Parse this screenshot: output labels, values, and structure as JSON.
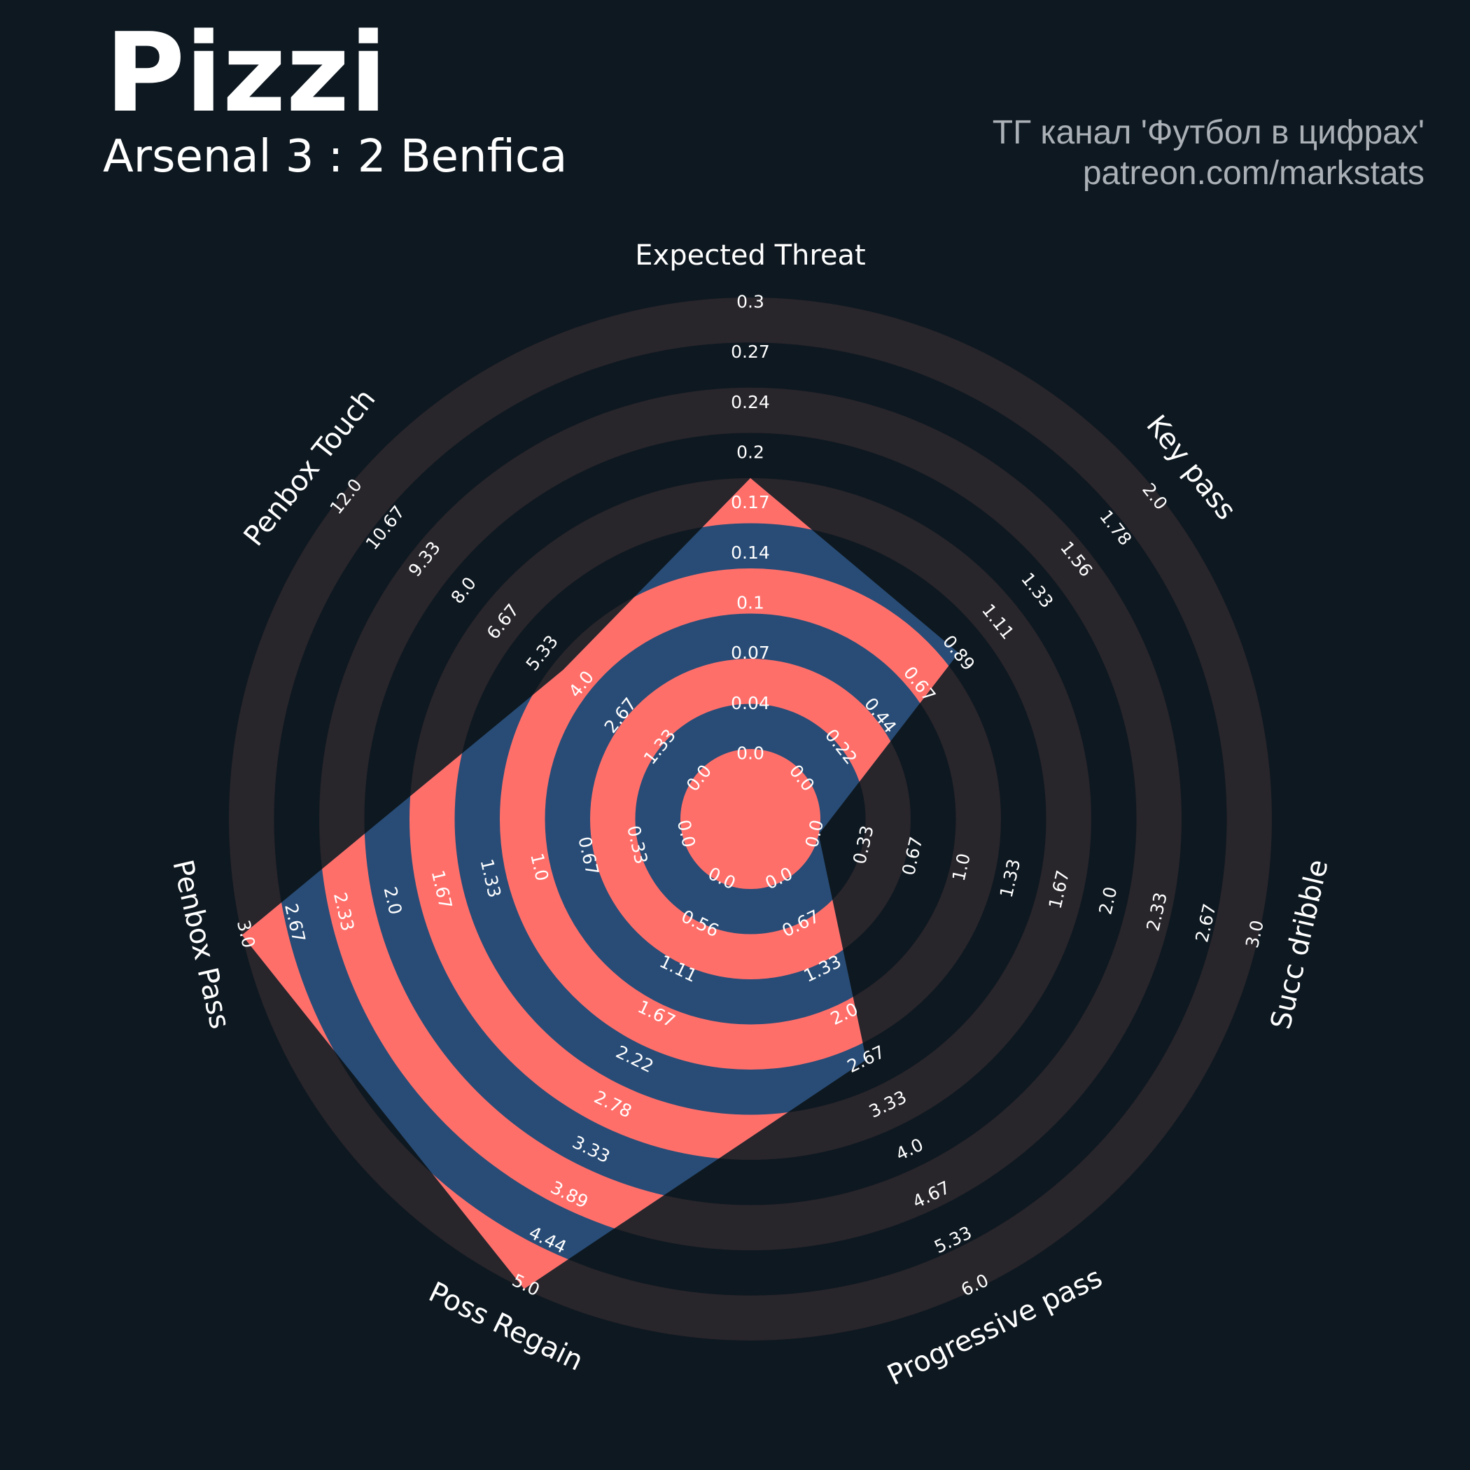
{
  "header": {
    "title": "Pizzi",
    "subtitle": "Arsenal 3 : 2 Benfica",
    "credit_line1": "ТГ канал 'Футбол в цифрах'",
    "credit_line2": "patreon.com/markstats"
  },
  "colors": {
    "background": "#0e1820",
    "ring_dark": "#28252b",
    "polygon_fill": "#284c76",
    "ring_highlight": "#ff6f6a",
    "text": "#ffffff",
    "credit_text": "#aab0b6"
  },
  "chart_data": {
    "type": "radar",
    "parameters": [
      "Expected Threat",
      "Key pass",
      "Succ dribble",
      "Progressive pass",
      "Poss Regain",
      "Penbox Pass",
      "Penbox Touch"
    ],
    "values": [
      0.18,
      0.87,
      0.0,
      2.62,
      5.0,
      3.0,
      4.5
    ],
    "ranges": [
      [
        0.0,
        0.3
      ],
      [
        0.0,
        2.0
      ],
      [
        0.0,
        3.0
      ],
      [
        0.0,
        6.0
      ],
      [
        0.0,
        5.0
      ],
      [
        0.0,
        3.0
      ],
      [
        0.0,
        12.0
      ]
    ],
    "tick_labels": [
      [
        "0.0",
        "0.04",
        "0.07",
        "0.1",
        "0.14",
        "0.17",
        "0.2",
        "0.24",
        "0.27",
        "0.3"
      ],
      [
        "0.0",
        "0.22",
        "0.44",
        "0.67",
        "0.89",
        "1.11",
        "1.33",
        "1.56",
        "1.78",
        "2.0"
      ],
      [
        "0.0",
        "0.33",
        "0.67",
        "1.0",
        "1.33",
        "1.67",
        "2.0",
        "2.33",
        "2.67",
        "3.0"
      ],
      [
        "0.0",
        "0.67",
        "1.33",
        "2.0",
        "2.67",
        "3.33",
        "4.0",
        "4.67",
        "5.33",
        "6.0"
      ],
      [
        "0.0",
        "0.56",
        "1.11",
        "1.67",
        "2.22",
        "2.78",
        "3.33",
        "3.89",
        "4.44",
        "5.0"
      ],
      [
        "0.0",
        "0.33",
        "0.67",
        "1.0",
        "1.33",
        "1.67",
        "2.0",
        "2.33",
        "2.67",
        "3.0"
      ],
      [
        "0.0",
        "1.33",
        "2.67",
        "4.0",
        "5.33",
        "6.67",
        "8.0",
        "9.33",
        "10.67",
        "12.0"
      ]
    ]
  }
}
